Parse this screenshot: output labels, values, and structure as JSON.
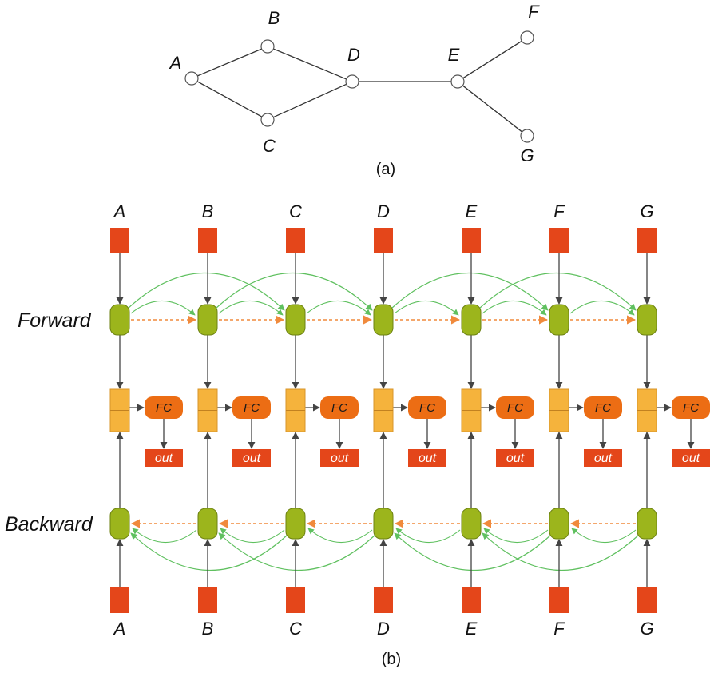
{
  "graph": {
    "nodes": [
      "A",
      "B",
      "C",
      "D",
      "E",
      "F",
      "G"
    ],
    "edges": [
      [
        "A",
        "B"
      ],
      [
        "A",
        "C"
      ],
      [
        "B",
        "D"
      ],
      [
        "C",
        "D"
      ],
      [
        "D",
        "E"
      ],
      [
        "E",
        "F"
      ],
      [
        "E",
        "G"
      ]
    ],
    "caption": "(a)"
  },
  "network": {
    "columns": [
      "A",
      "B",
      "C",
      "D",
      "E",
      "F",
      "G"
    ],
    "forward_label": "Forward",
    "backward_label": "Backward",
    "fc_label": "FC",
    "out_label": "out",
    "forward_skip_links": [
      [
        "A",
        "C"
      ],
      [
        "B",
        "D"
      ],
      [
        "D",
        "F"
      ],
      [
        "E",
        "G"
      ]
    ],
    "backward_skip_links": [
      [
        "C",
        "A"
      ],
      [
        "D",
        "B"
      ],
      [
        "F",
        "D"
      ],
      [
        "G",
        "E"
      ]
    ],
    "caption": "(b)"
  },
  "colors": {
    "input_box": "#e4461a",
    "hidden_node": "#9cb51c",
    "concat_box": "#f5b33c",
    "fc_box": "#ec6d14",
    "out_box": "#e4461a",
    "skip_arrow": "#5fc05f",
    "chain_arrow": "#f08a3c",
    "line": "#444444"
  }
}
